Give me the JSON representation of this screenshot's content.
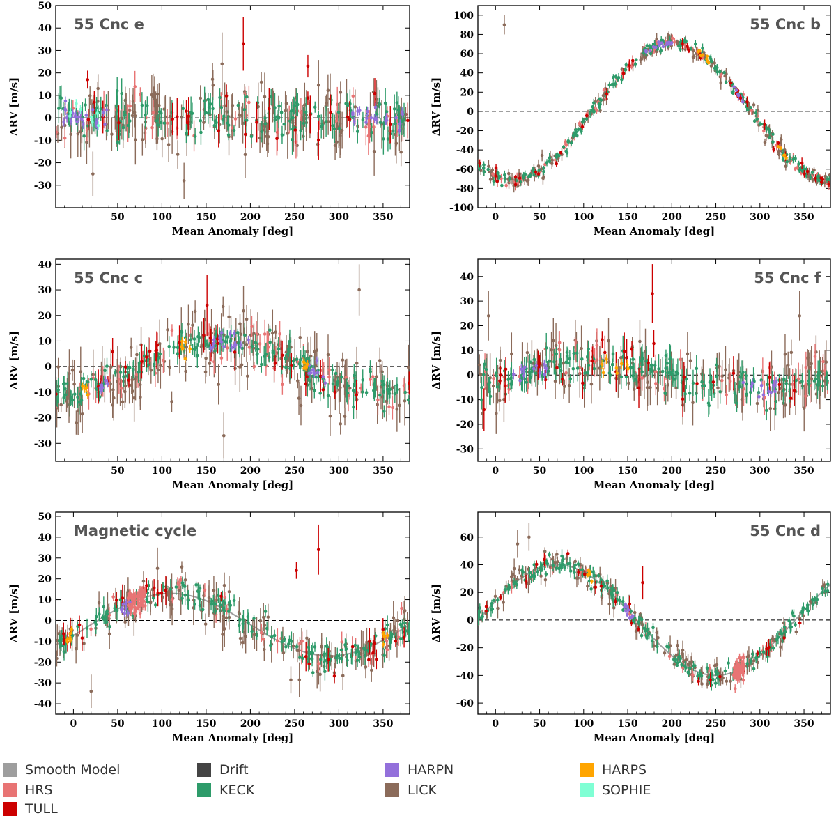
{
  "figure": {
    "colors": {
      "smooth_model": "#9e9e9e",
      "drift": "#444444",
      "harpn": "#9370db",
      "harps": "#ffa500",
      "hrs": "#e87474",
      "keck": "#2e9b6a",
      "lick": "#8b6b5a",
      "sophie": "#7fffd4",
      "tull": "#cc0000"
    },
    "legend": [
      {
        "label": "Smooth Model",
        "color_key": "smooth_model"
      },
      {
        "label": "Drift",
        "color_key": "drift"
      },
      {
        "label": "HARPN",
        "color_key": "harpn"
      },
      {
        "label": "HARPS",
        "color_key": "harps"
      },
      {
        "label": "HRS",
        "color_key": "hrs"
      },
      {
        "label": "KECK",
        "color_key": "keck"
      },
      {
        "label": "LICK",
        "color_key": "lick"
      },
      {
        "label": "SOPHIE",
        "color_key": "sophie"
      },
      {
        "label": "TULL",
        "color_key": "tull"
      }
    ]
  },
  "chart_data": [
    {
      "type": "scatter",
      "title": "55 Cnc e",
      "title_pos": "top-left",
      "xlabel": "Mean Anomaly [deg]",
      "ylabel": "ΔRV [m/s]",
      "xlim": [
        -20,
        380
      ],
      "ylim": [
        -40,
        50
      ],
      "xticks": [
        50,
        100,
        150,
        200,
        250,
        300,
        350
      ],
      "yticks": [
        -30,
        -20,
        -10,
        0,
        10,
        20,
        30,
        40,
        50
      ],
      "model": null,
      "noise": {
        "keck": 6,
        "lick": 9,
        "hrs": 7,
        "tull": 8
      },
      "counts": {
        "keck": 150,
        "lick": 150,
        "hrs": 45,
        "tull": 25
      },
      "clusters": [
        {
          "inst": "harpn",
          "x": [
            -15,
            40
          ],
          "n": 25,
          "sd": 2.5
        },
        {
          "inst": "harpn",
          "x": [
            315,
            375
          ],
          "n": 20,
          "sd": 2.5
        },
        {
          "inst": "sophie",
          "x": [
            -10,
            30
          ],
          "n": 8,
          "sd": 2.5
        }
      ],
      "highlights": [
        {
          "inst": "tull",
          "x": 192,
          "y": 33,
          "err": 12
        },
        {
          "inst": "tull",
          "x": 16,
          "y": 17,
          "err": 4
        },
        {
          "inst": "tull",
          "x": 265,
          "y": 23,
          "err": 5
        },
        {
          "inst": "lick",
          "x": 168,
          "y": 24,
          "err": 14
        },
        {
          "inst": "lick",
          "x": 22,
          "y": -25,
          "err": 10
        },
        {
          "inst": "lick",
          "x": 125,
          "y": -28,
          "err": 8
        }
      ]
    },
    {
      "type": "scatter",
      "title": "55 Cnc b",
      "title_pos": "top-right",
      "xlabel": "Mean Anomaly [deg]",
      "ylabel": "ΔRV [m/s]",
      "xlim": [
        -20,
        380
      ],
      "ylim": [
        -100,
        110
      ],
      "xticks": [
        0,
        50,
        100,
        150,
        200,
        250,
        300,
        350
      ],
      "yticks": [
        -100,
        -80,
        -60,
        -40,
        -20,
        0,
        20,
        40,
        60,
        80,
        100
      ],
      "model": {
        "kind": "sine",
        "amp": 71.3,
        "phase": 200,
        "offset": 0,
        "drawn": false
      },
      "noise": {
        "keck": 4,
        "lick": 6,
        "hrs": 4,
        "tull": 5
      },
      "counts": {
        "keck": 200,
        "lick": 160,
        "hrs": 80,
        "tull": 40
      },
      "clusters": [
        {
          "inst": "harpn",
          "x": [
            170,
            200
          ],
          "n": 18,
          "sd": 2
        },
        {
          "inst": "harpn",
          "x": [
            268,
            282
          ],
          "n": 8,
          "sd": 2
        },
        {
          "inst": "harps",
          "x": [
            228,
            242
          ],
          "n": 10,
          "sd": 2
        },
        {
          "inst": "harps",
          "x": [
            320,
            332
          ],
          "n": 6,
          "sd": 2
        }
      ],
      "highlights": [
        {
          "inst": "tull",
          "x": 278,
          "y": 14,
          "err": 4
        },
        {
          "inst": "lick",
          "x": 10,
          "y": 90,
          "err": 10
        }
      ]
    },
    {
      "type": "scatter",
      "title": "55 Cnc c",
      "title_pos": "top-left",
      "xlabel": "Mean Anomaly [deg]",
      "ylabel": "ΔRV [m/s]",
      "xlim": [
        -20,
        380
      ],
      "ylim": [
        -37,
        42
      ],
      "xticks": [
        50,
        100,
        150,
        200,
        250,
        300,
        350
      ],
      "yticks": [
        -30,
        -20,
        -10,
        0,
        10,
        20,
        30,
        40
      ],
      "model": {
        "kind": "sine",
        "amp": 10,
        "phase": 170,
        "offset": 0,
        "drawn": false
      },
      "noise": {
        "keck": 4,
        "lick": 8,
        "hrs": 5,
        "tull": 6
      },
      "counts": {
        "keck": 190,
        "lick": 160,
        "hrs": 60,
        "tull": 30
      },
      "clusters": [
        {
          "inst": "harpn",
          "x": [
            155,
            200
          ],
          "n": 16,
          "sd": 2
        },
        {
          "inst": "harpn",
          "x": [
            265,
            285
          ],
          "n": 10,
          "sd": 2
        },
        {
          "inst": "harpn",
          "x": [
            30,
            45
          ],
          "n": 6,
          "sd": 2
        },
        {
          "inst": "harps",
          "x": [
            120,
            132
          ],
          "n": 6,
          "sd": 2
        },
        {
          "inst": "harps",
          "x": [
            260,
            268
          ],
          "n": 5,
          "sd": 2
        },
        {
          "inst": "harps",
          "x": [
            10,
            18
          ],
          "n": 5,
          "sd": 2
        }
      ],
      "highlights": [
        {
          "inst": "tull",
          "x": 151,
          "y": 24,
          "err": 12
        },
        {
          "inst": "lick",
          "x": 323,
          "y": 30,
          "err": 10
        },
        {
          "inst": "lick",
          "x": -5,
          "y": -11,
          "err": 11
        },
        {
          "inst": "lick",
          "x": 170,
          "y": -27,
          "err": 9
        }
      ]
    },
    {
      "type": "scatter",
      "title": "55 Cnc f",
      "title_pos": "top-right",
      "xlabel": "Mean Anomaly [deg]",
      "ylabel": "ΔRV [m/s]",
      "xlim": [
        -20,
        380
      ],
      "ylim": [
        -35,
        47
      ],
      "xticks": [
        0,
        50,
        100,
        150,
        200,
        250,
        300,
        350
      ],
      "yticks": [
        -30,
        -20,
        -10,
        0,
        10,
        20,
        30,
        40
      ],
      "model": {
        "kind": "sine",
        "amp": 5,
        "phase": 110,
        "offset": 0,
        "drawn": false
      },
      "noise": {
        "keck": 5,
        "lick": 8,
        "hrs": 6,
        "tull": 7
      },
      "counts": {
        "keck": 180,
        "lick": 150,
        "hrs": 55,
        "tull": 30
      },
      "clusters": [
        {
          "inst": "harpn",
          "x": [
            20,
            60
          ],
          "n": 12,
          "sd": 2.5
        },
        {
          "inst": "harpn",
          "x": [
            270,
            320
          ],
          "n": 12,
          "sd": 2.5
        },
        {
          "inst": "harps",
          "x": [
            120,
            160
          ],
          "n": 8,
          "sd": 2.5
        }
      ],
      "highlights": [
        {
          "inst": "tull",
          "x": 178,
          "y": 33,
          "err": 12
        },
        {
          "inst": "lick",
          "x": -8,
          "y": 24,
          "err": 10
        },
        {
          "inst": "lick",
          "x": 345,
          "y": 24,
          "err": 10
        }
      ]
    },
    {
      "type": "scatter",
      "title": "Magnetic cycle",
      "title_pos": "top-left",
      "xlabel": "Mean Anomaly [deg]",
      "ylabel": "ΔRV [m/s]",
      "xlim": [
        -20,
        380
      ],
      "ylim": [
        -45,
        52
      ],
      "xticks": [
        0,
        50,
        100,
        150,
        200,
        250,
        300,
        350
      ],
      "yticks": [
        -40,
        -30,
        -20,
        -10,
        0,
        10,
        20,
        30,
        40,
        50
      ],
      "model": {
        "kind": "sine",
        "amp": 15,
        "phase": 110,
        "offset": -2,
        "drawn": true
      },
      "noise": {
        "keck": 4,
        "lick": 7,
        "hrs": 5,
        "tull": 6
      },
      "counts": {
        "keck": 170,
        "lick": 150,
        "hrs": 30,
        "tull": 30
      },
      "clusters": [
        {
          "inst": "hrs",
          "x": [
            62,
            82
          ],
          "n": 60,
          "sd": 3,
          "trend": true
        },
        {
          "inst": "harpn",
          "x": [
            54,
            64
          ],
          "n": 10,
          "sd": 2
        },
        {
          "inst": "harps",
          "x": [
            -8,
            -2
          ],
          "n": 6,
          "sd": 2
        },
        {
          "inst": "harps",
          "x": [
            350,
            358
          ],
          "n": 6,
          "sd": 2
        }
      ],
      "highlights": [
        {
          "inst": "tull",
          "x": 277,
          "y": 34,
          "err": 12
        },
        {
          "inst": "tull",
          "x": 252,
          "y": 24,
          "err": 4
        },
        {
          "inst": "lick",
          "x": 95,
          "y": 25,
          "err": 10
        },
        {
          "inst": "lick",
          "x": 20,
          "y": -34,
          "err": 8
        }
      ]
    },
    {
      "type": "scatter",
      "title": "55 Cnc d",
      "title_pos": "top-right",
      "xlabel": "Mean Anomaly [deg]",
      "ylabel": "ΔRV [m/s]",
      "xlim": [
        -20,
        380
      ],
      "ylim": [
        -68,
        78
      ],
      "xticks": [
        0,
        50,
        100,
        150,
        200,
        250,
        300,
        350
      ],
      "yticks": [
        -60,
        -40,
        -20,
        0,
        20,
        40,
        60
      ],
      "model": {
        "kind": "sine",
        "amp": 40,
        "phase": 70,
        "offset": 0,
        "drawn": true
      },
      "noise": {
        "keck": 4,
        "lick": 6,
        "hrs": 4,
        "tull": 5
      },
      "counts": {
        "keck": 190,
        "lick": 150,
        "hrs": 25,
        "tull": 25
      },
      "clusters": [
        {
          "inst": "hrs",
          "x": [
            270,
            282
          ],
          "n": 55,
          "sd": 4
        },
        {
          "inst": "harpn",
          "x": [
            146,
            156
          ],
          "n": 10,
          "sd": 2
        },
        {
          "inst": "harps",
          "x": [
            104,
            110
          ],
          "n": 6,
          "sd": 2
        }
      ],
      "highlights": [
        {
          "inst": "tull",
          "x": 167,
          "y": 27,
          "err": 12
        },
        {
          "inst": "lick",
          "x": 38,
          "y": 60,
          "err": 10
        },
        {
          "inst": "lick",
          "x": 25,
          "y": 55,
          "err": 10
        }
      ]
    }
  ]
}
